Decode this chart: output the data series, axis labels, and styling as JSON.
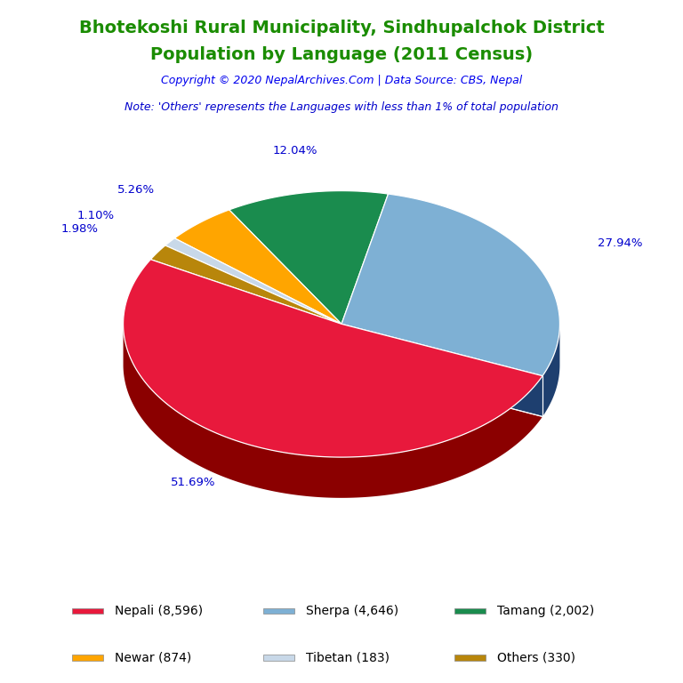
{
  "title_line1": "Bhotekoshi Rural Municipality, Sindhupalchok District",
  "title_line2": "Population by Language (2011 Census)",
  "title_color": "#1A8C00",
  "copyright_text": "Copyright © 2020 NepalArchives.Com | Data Source: CBS, Nepal",
  "copyright_color": "#0000EE",
  "note_text": "Note: 'Others' represents the Languages with less than 1% of total population",
  "note_color": "#0000CC",
  "values": [
    8596,
    4646,
    2002,
    874,
    183,
    330
  ],
  "percentages": [
    "51.69%",
    "27.94%",
    "12.04%",
    "5.26%",
    "1.10%",
    "1.98%"
  ],
  "colors": [
    "#E8193C",
    "#7EB0D4",
    "#1A8C4E",
    "#FFA500",
    "#C8D8E8",
    "#B8860B"
  ],
  "shadow_colors": [
    "#8B0000",
    "#1E3F6F",
    "#0A4A1E",
    "#CC7700",
    "#8899AA",
    "#7A5800"
  ],
  "label_color": "#0000CD",
  "background_color": "#FFFFFF",
  "legend_labels": [
    "Nepali (8,596)",
    "Sherpa (4,646)",
    "Tamang (2,002)",
    "Newar (874)",
    "Tibetan (183)",
    "Others (330)"
  ],
  "start_angle": 151
}
